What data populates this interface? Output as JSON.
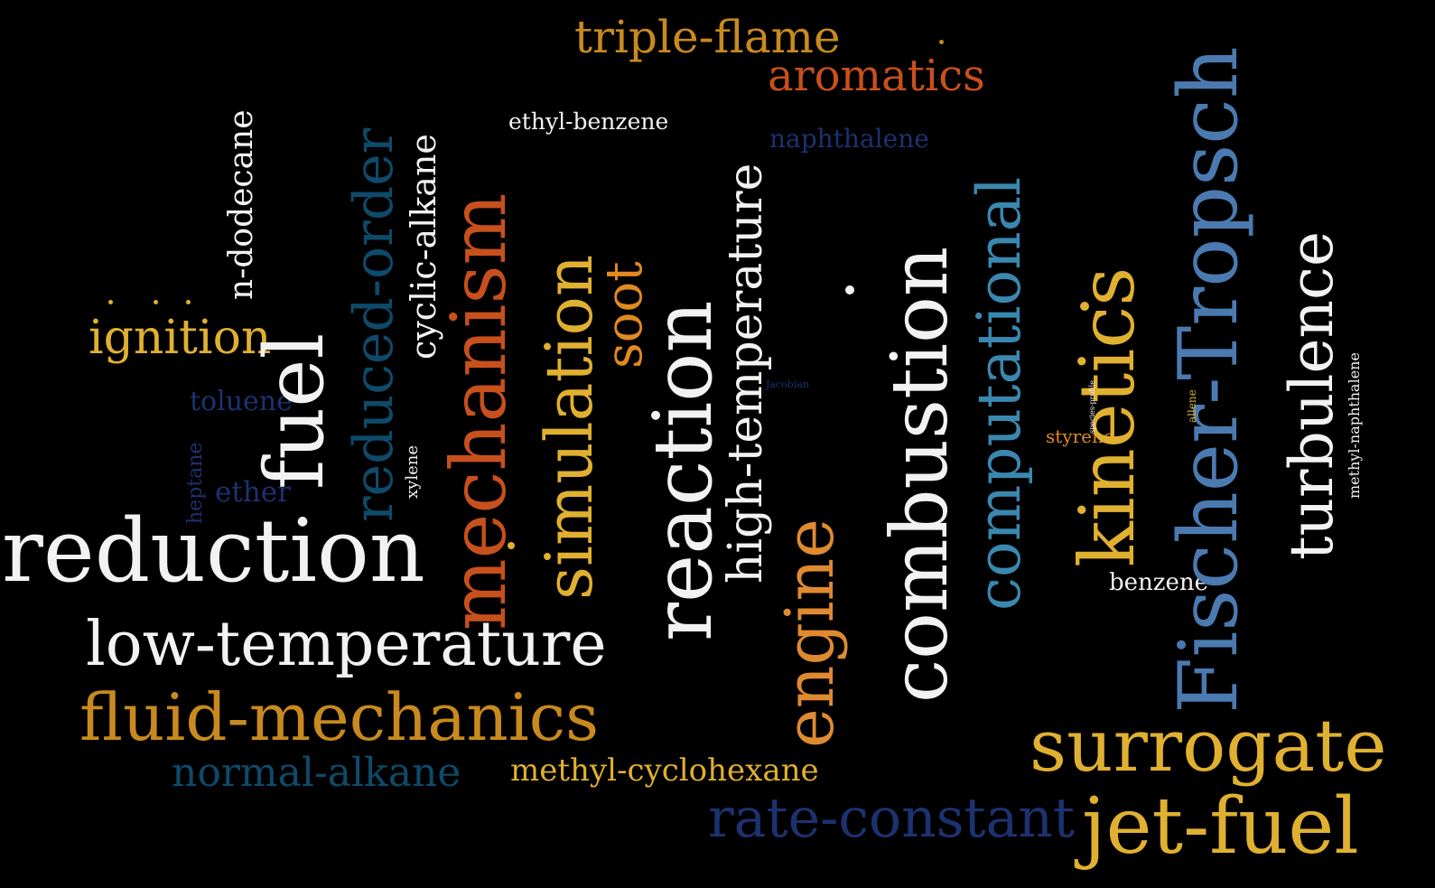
{
  "words": [
    {
      "text": "triple-flame",
      "color": "#c88a1e"
    },
    {
      "text": "aromatics",
      "color": "#c8501c"
    },
    {
      "text": "ethyl-benzene",
      "color": "#f2f2f2"
    },
    {
      "text": "naphthalene",
      "color": "#1c3270"
    },
    {
      "text": "n-dodecane",
      "color": "#f2f2f2"
    },
    {
      "text": "reduced-order",
      "color": "#0e4a6a"
    },
    {
      "text": "cyclic-alkane",
      "color": "#f2f2f2"
    },
    {
      "text": "mechanism",
      "color": "#c8501c"
    },
    {
      "text": "simulation",
      "color": "#e0b030"
    },
    {
      "text": "soot",
      "color": "#e08a20"
    },
    {
      "text": "reaction",
      "color": "#f2f2f2"
    },
    {
      "text": "high-temperature",
      "color": "#f2f2f2"
    },
    {
      "text": "combustion",
      "color": "#f2f2f2"
    },
    {
      "text": "computational",
      "color": "#3a88b0"
    },
    {
      "text": "kinetics",
      "color": "#e0b030"
    },
    {
      "text": "Fischer-Tropsch",
      "color": "#4a7ab0"
    },
    {
      "text": "turbulence",
      "color": "#f2f2f2"
    },
    {
      "text": "ignition",
      "color": "#e0b030"
    },
    {
      "text": "fuel",
      "color": "#f2f2f2"
    },
    {
      "text": "toluene",
      "color": "#1c3270"
    },
    {
      "text": "heptane",
      "color": "#1c3270"
    },
    {
      "text": "ether",
      "color": "#1c3270"
    },
    {
      "text": "xylene",
      "color": "#f2f2f2"
    },
    {
      "text": "Jacobian",
      "color": "#1c3270"
    },
    {
      "text": "species-profile",
      "color": "#f2f2f2"
    },
    {
      "text": "allene",
      "color": "#e0b030"
    },
    {
      "text": "methyl-naphthalene",
      "color": "#f2f2f2"
    },
    {
      "text": "styrene",
      "color": "#e08a20"
    },
    {
      "text": "engine",
      "color": "#e08a30"
    },
    {
      "text": "reduction",
      "color": "#f2f2f2"
    },
    {
      "text": "benzene",
      "color": "#f2f2f2"
    },
    {
      "text": "low-temperature",
      "color": "#f2f2f2"
    },
    {
      "text": "fluid-mechanics",
      "color": "#c88a1e"
    },
    {
      "text": "surrogate",
      "color": "#e0b030"
    },
    {
      "text": "normal-alkane",
      "color": "#0e4a6a"
    },
    {
      "text": "methyl-cyclohexane",
      "color": "#e0b030"
    },
    {
      "text": "rate-constant",
      "color": "#1c3270"
    },
    {
      "text": "jet-fuel",
      "color": "#e0b030"
    }
  ]
}
